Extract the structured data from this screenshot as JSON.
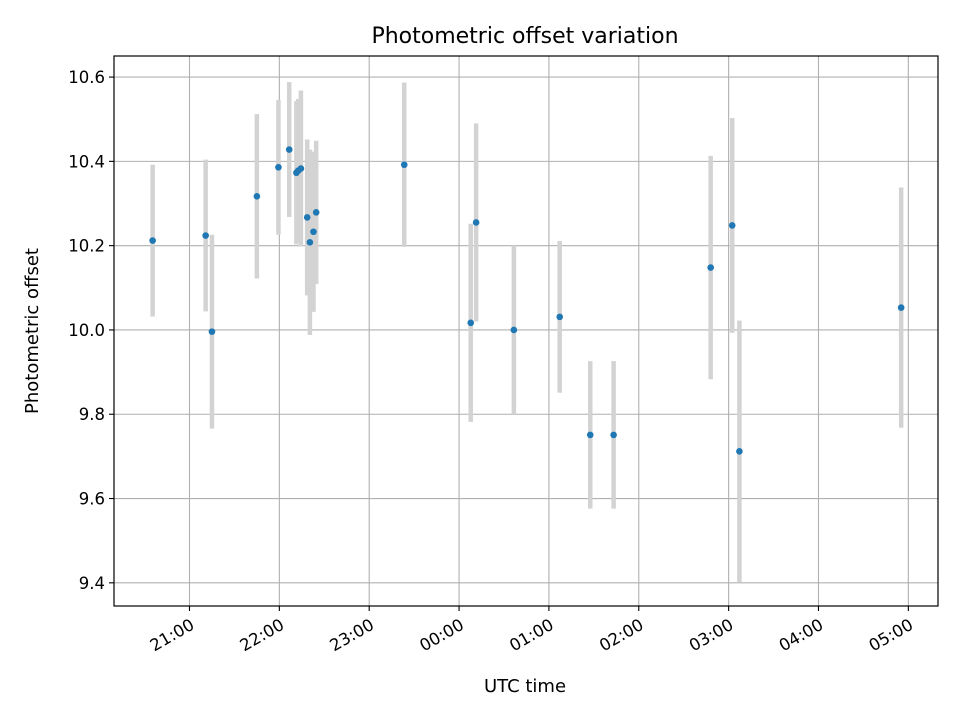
{
  "chart_data": {
    "type": "scatter",
    "title": "Photometric offset variation",
    "xlabel": "UTC time",
    "ylabel": "Photometric offset",
    "x_tick_labels": [
      "21:00",
      "22:00",
      "23:00",
      "00:00",
      "01:00",
      "02:00",
      "03:00",
      "04:00",
      "05:00"
    ],
    "y_tick_labels": [
      "9.4",
      "9.6",
      "9.8",
      "10.0",
      "10.2",
      "10.4",
      "10.6"
    ],
    "x_ticks_hours": [
      21,
      22,
      23,
      24,
      25,
      26,
      27,
      28,
      29
    ],
    "y_ticks": [
      9.4,
      9.6,
      9.8,
      10.0,
      10.2,
      10.4,
      10.6
    ],
    "xlim_hours": [
      20.16,
      29.33
    ],
    "ylim": [
      9.345,
      10.65
    ],
    "grid": true,
    "x_unit_note": "hours UTC; values above 24 are after midnight",
    "points": [
      {
        "x": 20.59,
        "y": 10.212,
        "err": 0.18
      },
      {
        "x": 21.18,
        "y": 10.224,
        "err": 0.18
      },
      {
        "x": 21.25,
        "y": 9.996,
        "err": 0.23
      },
      {
        "x": 21.75,
        "y": 10.317,
        "err": 0.195
      },
      {
        "x": 21.99,
        "y": 10.386,
        "err": 0.16
      },
      {
        "x": 22.11,
        "y": 10.428,
        "err": 0.16
      },
      {
        "x": 22.19,
        "y": 10.373,
        "err": 0.17
      },
      {
        "x": 22.21,
        "y": 10.378,
        "err": 0.17
      },
      {
        "x": 22.24,
        "y": 10.383,
        "err": 0.185
      },
      {
        "x": 22.31,
        "y": 10.267,
        "err": 0.185
      },
      {
        "x": 22.34,
        "y": 10.208,
        "err": 0.22
      },
      {
        "x": 22.38,
        "y": 10.233,
        "err": 0.19
      },
      {
        "x": 22.41,
        "y": 10.279,
        "err": 0.17
      },
      {
        "x": 23.39,
        "y": 10.392,
        "err": 0.195
      },
      {
        "x": 24.13,
        "y": 10.017,
        "err": 0.235
      },
      {
        "x": 24.19,
        "y": 10.255,
        "err": 0.235
      },
      {
        "x": 24.61,
        "y": 10.0,
        "err": 0.2
      },
      {
        "x": 25.12,
        "y": 10.031,
        "err": 0.18
      },
      {
        "x": 25.46,
        "y": 9.751,
        "err": 0.175
      },
      {
        "x": 25.72,
        "y": 9.751,
        "err": 0.175
      },
      {
        "x": 26.8,
        "y": 10.148,
        "err": 0.265
      },
      {
        "x": 27.04,
        "y": 10.248,
        "err": 0.255
      },
      {
        "x": 27.12,
        "y": 9.712,
        "err": 0.31
      },
      {
        "x": 28.92,
        "y": 10.053,
        "err": 0.285
      }
    ]
  }
}
